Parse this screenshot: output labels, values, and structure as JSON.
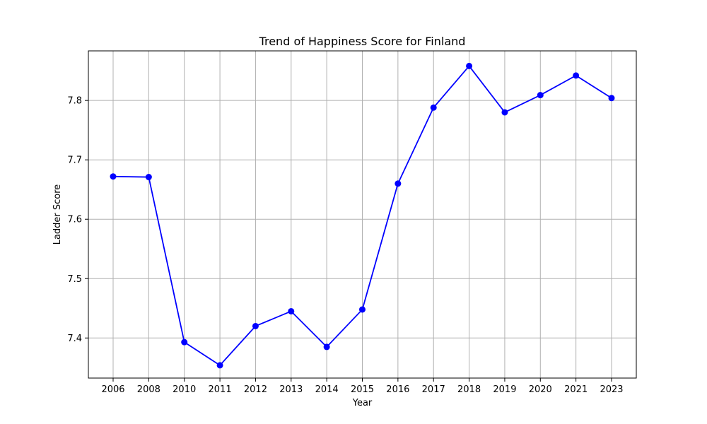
{
  "chart_data": {
    "type": "line",
    "title": "Trend of Happiness Score for Finland",
    "xlabel": "Year",
    "ylabel": "Ladder Score",
    "categories": [
      "2006",
      "2008",
      "2010",
      "2011",
      "2012",
      "2013",
      "2014",
      "2015",
      "2016",
      "2017",
      "2018",
      "2019",
      "2020",
      "2021",
      "2023"
    ],
    "series": [
      {
        "values": [
          7.672,
          7.671,
          7.393,
          7.354,
          7.42,
          7.445,
          7.385,
          7.448,
          7.66,
          7.788,
          7.858,
          7.78,
          7.809,
          7.842,
          7.804
        ]
      }
    ],
    "yticks": [
      "7.4",
      "7.5",
      "7.6",
      "7.7",
      "7.8"
    ],
    "ylim": [
      7.3325,
      7.8835
    ],
    "grid": true,
    "marker": "circle",
    "colors": {
      "line": "#0000ff",
      "marker": "#0000ff",
      "grid": "#b0b0b0"
    }
  }
}
